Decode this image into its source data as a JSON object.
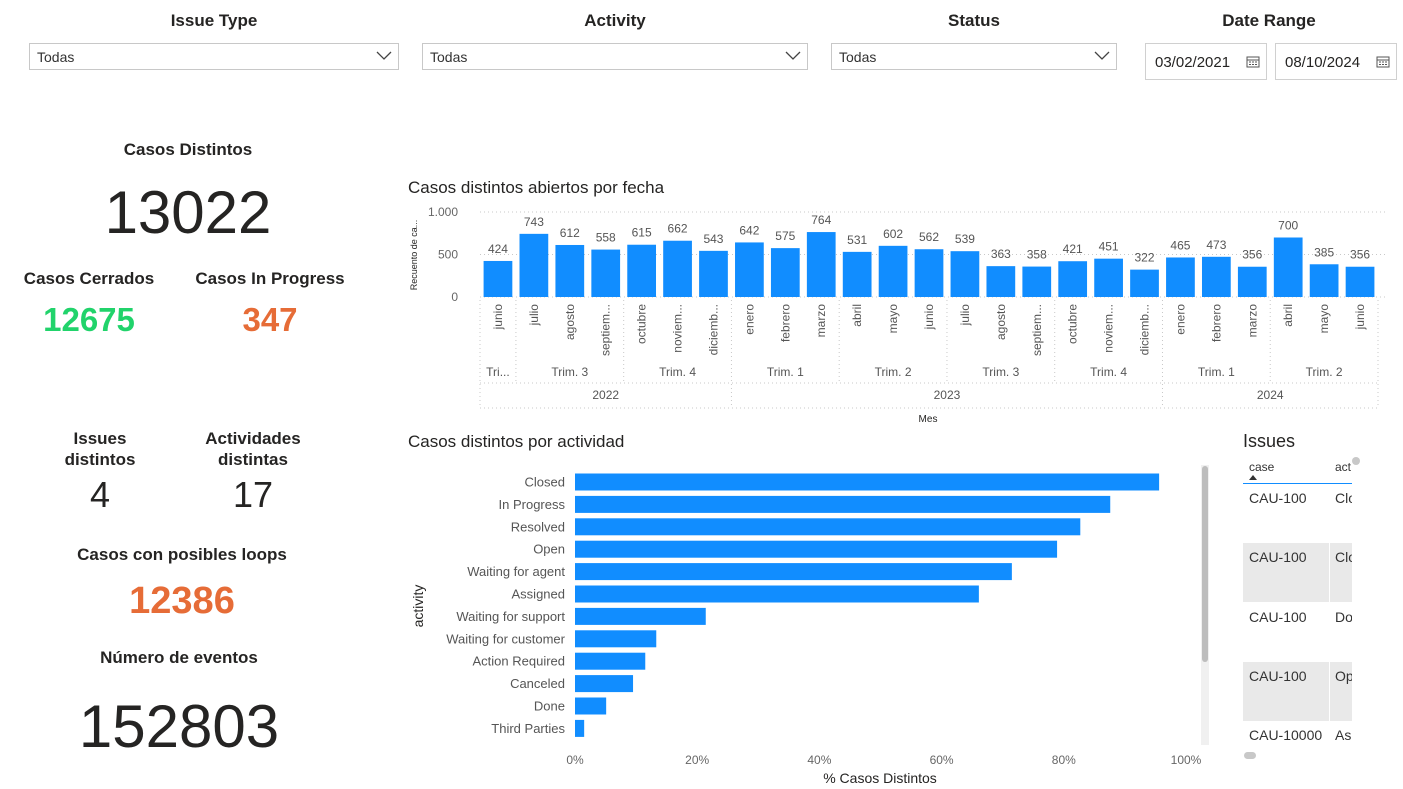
{
  "filters": [
    {
      "label": "Issue Type",
      "value": "Todas"
    },
    {
      "label": "Activity",
      "value": "Todas"
    },
    {
      "label": "Status",
      "value": "Todas"
    }
  ],
  "date_range": {
    "label": "Date Range",
    "start": "03/02/2021",
    "end": "08/10/2024"
  },
  "cards": {
    "casos_distintos": {
      "label": "Casos Distintos",
      "value": 13022
    },
    "casos_cerrados": {
      "label": "Casos Cerrados",
      "value": 12675
    },
    "casos_in_progress": {
      "label": "Casos In Progress",
      "value": 347
    },
    "issues_distintos": {
      "label": "Issues distintos",
      "value": 4
    },
    "actividades_distintas": {
      "label": "Actividades distintas",
      "value": 17
    },
    "casos_loops": {
      "label": "Casos con posibles loops",
      "value": 12386
    },
    "numero_eventos": {
      "label": "Número de eventos",
      "value": 152803
    }
  },
  "chart_data": [
    {
      "type": "bar",
      "title": "Casos distintos abiertos por fecha",
      "y_label": "Recuento de ca...",
      "x_label": "Mes",
      "color": "#118dff",
      "ylim": [
        0,
        1000
      ],
      "yticks": [
        0,
        500,
        {
          "value": 1000,
          "label": "1.000"
        }
      ],
      "grid": true,
      "years": [
        {
          "label": "2022",
          "quarters": [
            {
              "label": "Tri...",
              "months": [
                {
                  "label": "junio",
                  "value": 424
                }
              ]
            },
            {
              "label": "Trim. 3",
              "months": [
                {
                  "label": "julio",
                  "value": 743
                },
                {
                  "label": "agosto",
                  "value": 612
                },
                {
                  "label": "septiem...",
                  "value": 558
                }
              ]
            },
            {
              "label": "Trim. 4",
              "months": [
                {
                  "label": "octubre",
                  "value": 615
                },
                {
                  "label": "noviem...",
                  "value": 662
                },
                {
                  "label": "diciemb...",
                  "value": 543
                }
              ]
            }
          ]
        },
        {
          "label": "2023",
          "quarters": [
            {
              "label": "Trim. 1",
              "months": [
                {
                  "label": "enero",
                  "value": 642
                },
                {
                  "label": "febrero",
                  "value": 575
                },
                {
                  "label": "marzo",
                  "value": 764
                }
              ]
            },
            {
              "label": "Trim. 2",
              "months": [
                {
                  "label": "abril",
                  "value": 531
                },
                {
                  "label": "mayo",
                  "value": 602
                },
                {
                  "label": "junio",
                  "value": 562
                }
              ]
            },
            {
              "label": "Trim. 3",
              "months": [
                {
                  "label": "julio",
                  "value": 539
                },
                {
                  "label": "agosto",
                  "value": 363
                },
                {
                  "label": "septiem...",
                  "value": 358
                }
              ]
            },
            {
              "label": "Trim. 4",
              "months": [
                {
                  "label": "octubre",
                  "value": 421
                },
                {
                  "label": "noviem...",
                  "value": 451
                },
                {
                  "label": "diciemb...",
                  "value": 322
                }
              ]
            }
          ]
        },
        {
          "label": "2024",
          "quarters": [
            {
              "label": "Trim. 1",
              "months": [
                {
                  "label": "enero",
                  "value": 465
                },
                {
                  "label": "febrero",
                  "value": 473
                },
                {
                  "label": "marzo",
                  "value": 356
                }
              ]
            },
            {
              "label": "Trim. 2",
              "months": [
                {
                  "label": "abril",
                  "value": 700
                },
                {
                  "label": "mayo",
                  "value": 385
                },
                {
                  "label": "junio",
                  "value": 356
                }
              ]
            }
          ]
        }
      ]
    },
    {
      "type": "barh",
      "title": "Casos distintos por actividad",
      "y_label": "activity",
      "x_label": "% Casos Distintos",
      "color": "#118dff",
      "categories": [
        "Closed",
        "In Progress",
        "Resolved",
        "Open",
        "Waiting for agent",
        "Assigned",
        "Waiting for support",
        "Waiting for customer",
        "Action Required",
        "Canceled",
        "Done",
        "Third Parties"
      ],
      "values": [
        95.6,
        87.6,
        82.7,
        78.9,
        71.5,
        66.1,
        21.4,
        13.3,
        11.5,
        9.5,
        5.1,
        1.5
      ],
      "xlim": [
        0,
        100
      ],
      "xticks": [
        {
          "value": 0,
          "label": "0%"
        },
        {
          "value": 20,
          "label": "20%"
        },
        {
          "value": 40,
          "label": "40%"
        },
        {
          "value": 60,
          "label": "60%"
        },
        {
          "value": 80,
          "label": "80%"
        },
        {
          "value": 100,
          "label": "100%"
        }
      ]
    }
  ],
  "table": {
    "title": "Issues",
    "columns": [
      "case",
      "act"
    ],
    "rows": [
      [
        "CAU-100",
        "Clo"
      ],
      [
        "CAU-100",
        "Clo"
      ],
      [
        "CAU-100",
        "Do"
      ],
      [
        "CAU-100",
        "Op"
      ],
      [
        "CAU-10000",
        "As"
      ]
    ]
  }
}
